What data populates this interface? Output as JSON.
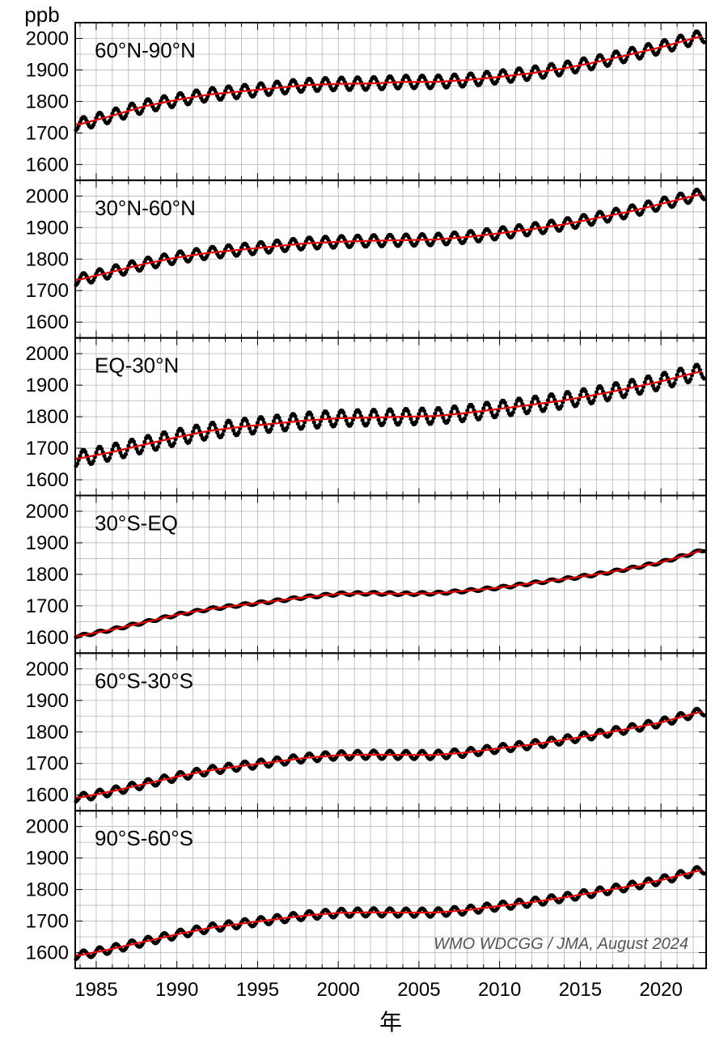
{
  "figure": {
    "y_unit": "ppb",
    "x_axis_label": "年",
    "credit": "WMO WDCGG / JMA, August 2024"
  },
  "colors": {
    "observed_points": "#000000",
    "trend_line": "#e60000",
    "grid": "#b4b4b4",
    "frame": "#000000"
  },
  "chart_data": {
    "type": "line",
    "xlim": [
      1983.7,
      2022.8
    ],
    "ylim": [
      1550,
      2050
    ],
    "x_ticks": [
      1985,
      1990,
      1995,
      2000,
      2005,
      2010,
      2015,
      2020
    ],
    "x_tick_labels": [
      "1985",
      "1990",
      "1995",
      "2000",
      "2005",
      "2010",
      "2015",
      "2020"
    ],
    "y_ticks": [
      1600,
      1700,
      1800,
      1900,
      2000
    ],
    "y_tick_labels": [
      "1600",
      "1700",
      "1800",
      "1900",
      "2000"
    ],
    "grid": true,
    "series_description": "Monthly observed values (black dots) and deseasonalized trend (red line) per latitude band",
    "panels": [
      {
        "label": "60°N-90°N",
        "seasonal_amplitude": 20,
        "trend": [
          [
            1984,
            1728
          ],
          [
            1986,
            1755
          ],
          [
            1988,
            1785
          ],
          [
            1990,
            1805
          ],
          [
            1992,
            1822
          ],
          [
            1994,
            1832
          ],
          [
            1996,
            1842
          ],
          [
            1998,
            1852
          ],
          [
            2000,
            1856
          ],
          [
            2002,
            1857
          ],
          [
            2004,
            1862
          ],
          [
            2006,
            1862
          ],
          [
            2008,
            1868
          ],
          [
            2010,
            1878
          ],
          [
            2012,
            1890
          ],
          [
            2014,
            1905
          ],
          [
            2016,
            1925
          ],
          [
            2018,
            1948
          ],
          [
            2020,
            1972
          ],
          [
            2022,
            2000
          ],
          [
            2022.7,
            2008
          ]
        ]
      },
      {
        "label": "30°N-60°N",
        "seasonal_amplitude": 18,
        "trend": [
          [
            1984,
            1735
          ],
          [
            1986,
            1760
          ],
          [
            1988,
            1785
          ],
          [
            1990,
            1805
          ],
          [
            1992,
            1820
          ],
          [
            1994,
            1830
          ],
          [
            1996,
            1840
          ],
          [
            1998,
            1850
          ],
          [
            2000,
            1855
          ],
          [
            2002,
            1858
          ],
          [
            2004,
            1860
          ],
          [
            2006,
            1862
          ],
          [
            2008,
            1870
          ],
          [
            2010,
            1882
          ],
          [
            2012,
            1895
          ],
          [
            2014,
            1910
          ],
          [
            2016,
            1930
          ],
          [
            2018,
            1950
          ],
          [
            2020,
            1975
          ],
          [
            2022,
            2000
          ],
          [
            2022.7,
            2008
          ]
        ]
      },
      {
        "label": "EQ-30°N",
        "seasonal_amplitude": 25,
        "trend": [
          [
            1984,
            1668
          ],
          [
            1986,
            1688
          ],
          [
            1988,
            1712
          ],
          [
            1990,
            1735
          ],
          [
            1992,
            1755
          ],
          [
            1994,
            1768
          ],
          [
            1996,
            1778
          ],
          [
            1998,
            1788
          ],
          [
            2000,
            1795
          ],
          [
            2002,
            1797
          ],
          [
            2004,
            1800
          ],
          [
            2006,
            1802
          ],
          [
            2008,
            1812
          ],
          [
            2010,
            1825
          ],
          [
            2012,
            1838
          ],
          [
            2014,
            1852
          ],
          [
            2016,
            1870
          ],
          [
            2018,
            1890
          ],
          [
            2020,
            1912
          ],
          [
            2022,
            1938
          ],
          [
            2022.7,
            1946
          ]
        ]
      },
      {
        "label": "30°S-EQ",
        "seasonal_amplitude": 4,
        "trend": [
          [
            1984,
            1605
          ],
          [
            1986,
            1625
          ],
          [
            1988,
            1648
          ],
          [
            1990,
            1672
          ],
          [
            1992,
            1690
          ],
          [
            1994,
            1703
          ],
          [
            1996,
            1715
          ],
          [
            1998,
            1728
          ],
          [
            2000,
            1738
          ],
          [
            2002,
            1740
          ],
          [
            2004,
            1738
          ],
          [
            2006,
            1740
          ],
          [
            2008,
            1748
          ],
          [
            2010,
            1758
          ],
          [
            2012,
            1772
          ],
          [
            2014,
            1785
          ],
          [
            2016,
            1800
          ],
          [
            2018,
            1818
          ],
          [
            2020,
            1838
          ],
          [
            2022,
            1868
          ],
          [
            2022.7,
            1878
          ]
        ]
      },
      {
        "label": "60°S-30°S",
        "seasonal_amplitude": 13,
        "trend": [
          [
            1984,
            1592
          ],
          [
            1986,
            1612
          ],
          [
            1988,
            1635
          ],
          [
            1990,
            1658
          ],
          [
            1992,
            1678
          ],
          [
            1994,
            1692
          ],
          [
            1996,
            1705
          ],
          [
            1998,
            1718
          ],
          [
            2000,
            1726
          ],
          [
            2002,
            1728
          ],
          [
            2004,
            1727
          ],
          [
            2006,
            1727
          ],
          [
            2008,
            1735
          ],
          [
            2010,
            1748
          ],
          [
            2012,
            1760
          ],
          [
            2014,
            1775
          ],
          [
            2016,
            1792
          ],
          [
            2018,
            1810
          ],
          [
            2020,
            1830
          ],
          [
            2022,
            1858
          ],
          [
            2022.7,
            1866
          ]
        ]
      },
      {
        "label": "90°S-60°S",
        "seasonal_amplitude": 13,
        "trend": [
          [
            1984,
            1592
          ],
          [
            1986,
            1612
          ],
          [
            1988,
            1635
          ],
          [
            1990,
            1658
          ],
          [
            1992,
            1678
          ],
          [
            1994,
            1692
          ],
          [
            1996,
            1705
          ],
          [
            1998,
            1718
          ],
          [
            2000,
            1726
          ],
          [
            2002,
            1728
          ],
          [
            2004,
            1727
          ],
          [
            2006,
            1727
          ],
          [
            2008,
            1735
          ],
          [
            2010,
            1748
          ],
          [
            2012,
            1760
          ],
          [
            2014,
            1775
          ],
          [
            2016,
            1792
          ],
          [
            2018,
            1810
          ],
          [
            2020,
            1830
          ],
          [
            2022,
            1856
          ],
          [
            2022.7,
            1864
          ]
        ]
      }
    ]
  }
}
